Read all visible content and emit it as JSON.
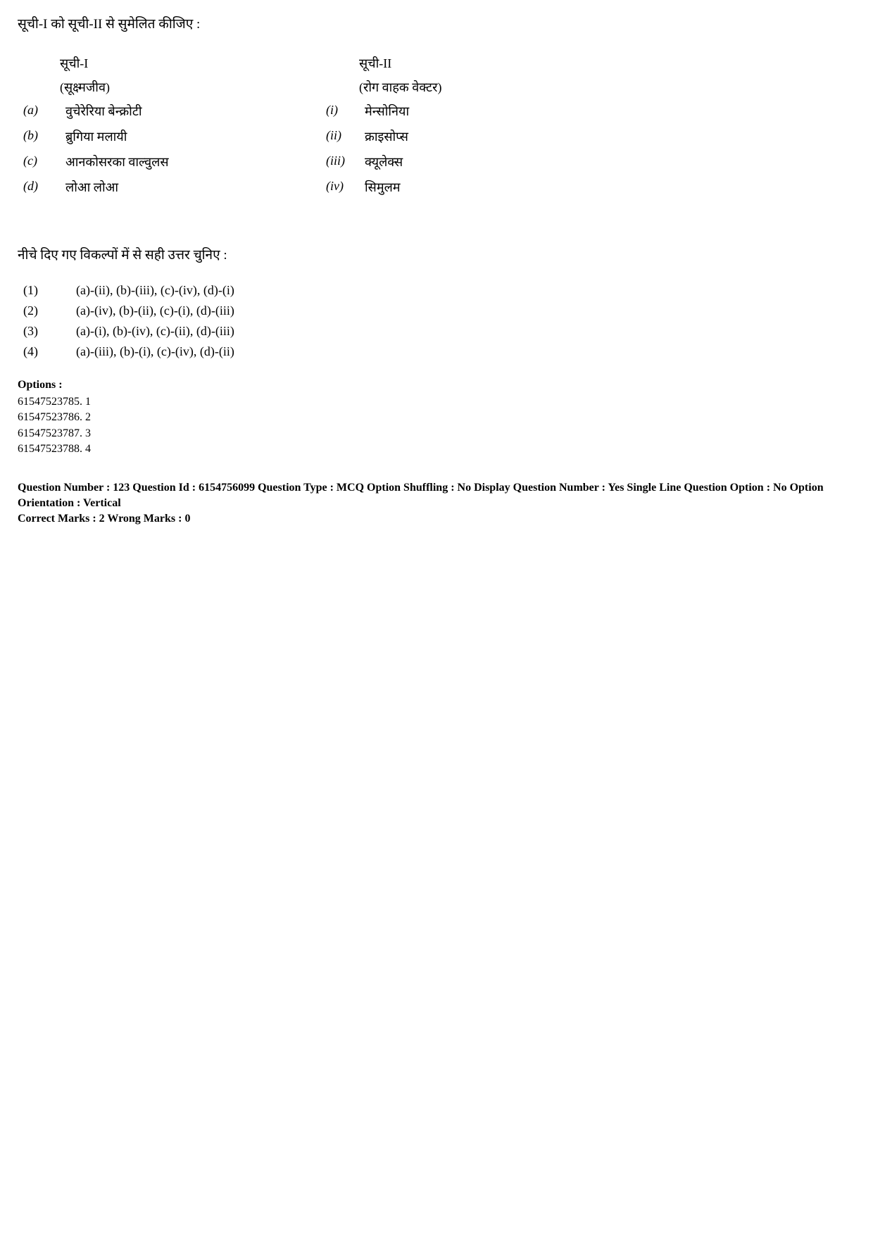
{
  "question_heading": "सूची-I को सूची-II से सुमेलित कीजिए :",
  "list1_title": "सूची-I",
  "list1_subtitle": "(सूक्ष्मजीव)",
  "list2_title": "सूची-II",
  "list2_subtitle": "(रोग वाहक वेक्टर)",
  "rows": [
    {
      "llabel": "(a)",
      "ltext": "वुचेरेरिया बेन्क्रोटी",
      "rlabel": "(i)",
      "rtext": "मेन्सोनिया"
    },
    {
      "llabel": "(b)",
      "ltext": "ब्रुगिया मलायी",
      "rlabel": "(ii)",
      "rtext": "क्राइसोप्स"
    },
    {
      "llabel": "(c)",
      "ltext": "आनकोसरका वाल्वुलस",
      "rlabel": "(iii)",
      "rtext": "क्यूलेक्स"
    },
    {
      "llabel": "(d)",
      "ltext": "लोआ लोआ",
      "rlabel": "(iv)",
      "rtext": "सिमुलम"
    }
  ],
  "instruction": "नीचे दिए गए विकल्पों में से सही उत्तर चुनिए :",
  "answers": [
    {
      "num": "(1)",
      "text": "(a)-(ii), (b)-(iii), (c)-(iv), (d)-(i)"
    },
    {
      "num": "(2)",
      "text": "(a)-(iv), (b)-(ii), (c)-(i), (d)-(iii)"
    },
    {
      "num": "(3)",
      "text": "(a)-(i), (b)-(iv), (c)-(ii), (d)-(iii)"
    },
    {
      "num": "(4)",
      "text": "(a)-(iii), (b)-(i), (c)-(iv), (d)-(ii)"
    }
  ],
  "options_heading": "Options :",
  "option_lines": [
    "61547523785. 1",
    "61547523786. 2",
    "61547523787. 3",
    "61547523788. 4"
  ],
  "meta_line1": "Question Number : 123  Question Id : 6154756099  Question Type : MCQ  Option Shuffling : No  Display Question Number : Yes Single Line Question Option : No  Option Orientation : Vertical",
  "meta_line2": "Correct Marks : 2  Wrong Marks : 0"
}
